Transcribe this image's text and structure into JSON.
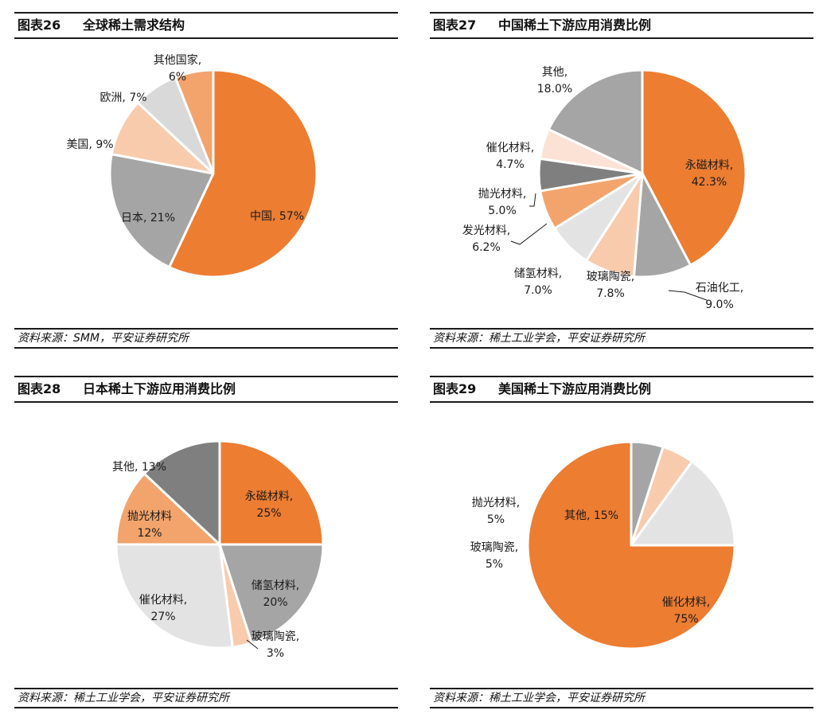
{
  "colors": {
    "orange": "#ED7D31",
    "light_orange": "#F4B183",
    "mid_orange": "#F2A46C",
    "pale_orange": "#F8CBAD",
    "gray": "#A5A5A5",
    "dark_gray": "#7F7F7F",
    "light_gray": "#D9D9D9",
    "lighter_gray": "#E3E3E3"
  },
  "chart_data": [
    {
      "type": "pie",
      "figure_label": "图表26",
      "title": "全球稀土需求结构",
      "source": "资料来源：SMM，平安证券研究所",
      "categories": [
        "中国",
        "日本",
        "美国",
        "欧洲",
        "其他国家"
      ],
      "values": [
        57,
        21,
        9,
        7,
        6
      ],
      "value_labels": [
        "57%",
        "21%",
        "9%",
        "7%",
        "6%"
      ],
      "colors": [
        "#ED7D31",
        "#A5A5A5",
        "#F8CBAD",
        "#D9D9D9",
        "#F2A46C"
      ],
      "label_sep": [
        ", ",
        ", ",
        ", ",
        ", ",
        ",\n"
      ]
    },
    {
      "type": "pie",
      "figure_label": "图表27",
      "title": "中国稀土下游应用消费比例",
      "source": "资料来源：稀土工业学会，平安证券研究所",
      "categories": [
        "永磁材料",
        "石油化工",
        "玻璃陶瓷",
        "储氢材料",
        "发光材料",
        "抛光材料",
        "催化材料",
        "其他"
      ],
      "values": [
        42.3,
        9.0,
        7.8,
        7.0,
        6.2,
        5.0,
        4.7,
        18.0
      ],
      "value_labels": [
        "42.3%",
        "9.0%",
        "7.8%",
        "7.0%",
        "6.2%",
        "5.0%",
        "4.7%",
        "18.0%"
      ],
      "colors": [
        "#ED7D31",
        "#A5A5A5",
        "#F8CBAD",
        "#E3E3E3",
        "#F2A46C",
        "#7F7F7F",
        "#FBE2D5",
        "#A5A5A5"
      ],
      "label_sep": [
        ",\n",
        ",\n",
        ",\n",
        ",\n",
        ",\n",
        ",\n",
        ",\n",
        ",\n"
      ]
    },
    {
      "type": "pie",
      "figure_label": "图表28",
      "title": "日本稀土下游应用消费比例",
      "source": "资料来源：稀土工业学会，平安证券研究所",
      "categories": [
        "永磁材料",
        "储氢材料",
        "玻璃陶瓷",
        "催化材料",
        "抛光材料",
        "其他"
      ],
      "values": [
        25,
        20,
        3,
        27,
        12,
        13
      ],
      "value_labels": [
        "25%",
        "20%",
        "3%",
        "27%",
        "12%",
        "13%"
      ],
      "colors": [
        "#ED7D31",
        "#A5A5A5",
        "#F8CBAD",
        "#E3E3E3",
        "#F2A46C",
        "#7F7F7F"
      ],
      "label_sep": [
        ",\n",
        ",\n",
        ",\n",
        ",\n",
        "\n",
        ", "
      ]
    },
    {
      "type": "pie",
      "figure_label": "图表29",
      "title": "美国稀土下游应用消费比例",
      "source": "资料来源：稀土工业学会，平安证券研究所",
      "categories": [
        "催化材料",
        "玻璃陶瓷",
        "抛光材料",
        "其他"
      ],
      "values": [
        75,
        5,
        5,
        15
      ],
      "value_labels": [
        "75%",
        "5%",
        "5%",
        "15%"
      ],
      "colors": [
        "#ED7D31",
        "#A5A5A5",
        "#F8CBAD",
        "#E3E3E3"
      ],
      "label_sep": [
        ",\n",
        ",\n",
        ",\n",
        ", "
      ]
    }
  ]
}
